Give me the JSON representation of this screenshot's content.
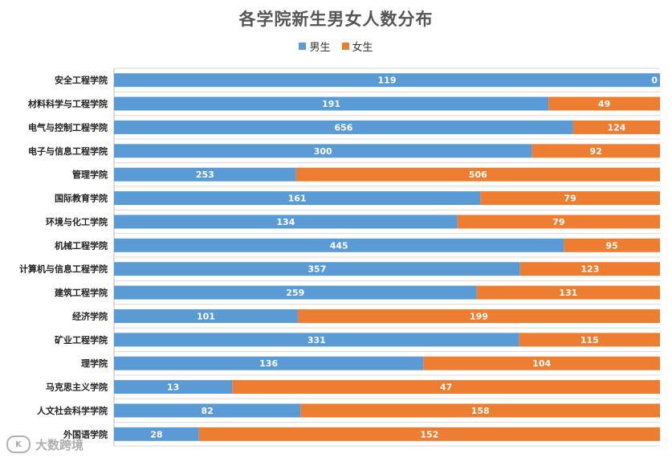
{
  "title": "各学院新生男女人数分布",
  "watermark": "大数跨境",
  "colors": {
    "male": "#5b9bd5",
    "female": "#ed7d31",
    "grid": "#d9d9d9"
  },
  "chart_data": {
    "type": "bar",
    "orientation": "horizontal",
    "stacked": "percent",
    "title": "各学院新生男女人数分布",
    "legend_position": "top",
    "categories": [
      "安全工程学院",
      "材料科学与工程学院",
      "电气与控制工程学院",
      "电子与信息工程学院",
      "管理学院",
      "国际教育学院",
      "环境与化工学院",
      "机械工程学院",
      "计算机与信息工程学院",
      "建筑工程学院",
      "经济学院",
      "矿业工程学院",
      "理学院",
      "马克思主义学院",
      "人文社会科学学院",
      "外国语学院"
    ],
    "series": [
      {
        "name": "男生",
        "values": [
          119,
          191,
          656,
          300,
          253,
          161,
          134,
          445,
          357,
          259,
          101,
          331,
          136,
          13,
          82,
          28
        ]
      },
      {
        "name": "女生",
        "values": [
          0,
          49,
          124,
          92,
          506,
          79,
          79,
          95,
          123,
          131,
          199,
          115,
          104,
          47,
          158,
          152
        ]
      }
    ]
  }
}
